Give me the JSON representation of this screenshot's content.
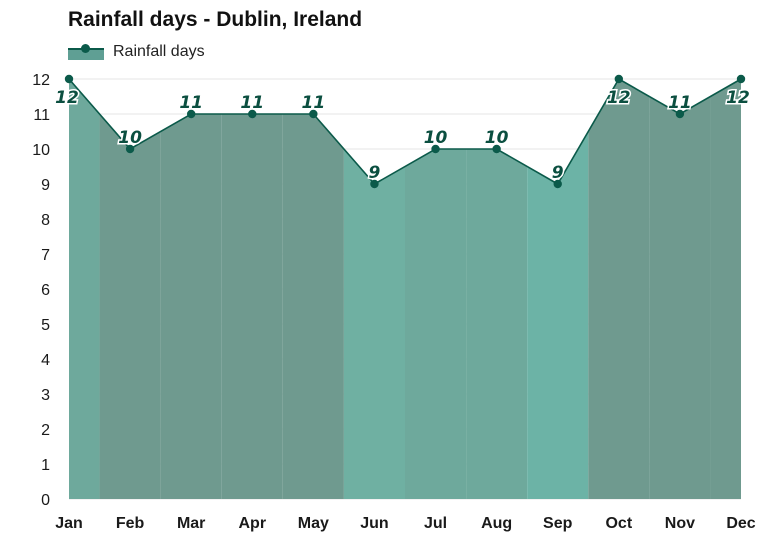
{
  "title": "Rainfall days - Dublin, Ireland",
  "legend": {
    "label": "Rainfall days"
  },
  "colors": {
    "line": "#0b5a4a",
    "marker": "#0b5a4a",
    "label": "#0b4f40",
    "grid": "#e6e6e6",
    "bands": [
      "#6ea99c",
      "#6f9a8f",
      "#6f9a8f",
      "#6f9a8f",
      "#6f9a8f",
      "#6fb0a2",
      "#6ea99c",
      "#6ea99c",
      "#6cb3a6",
      "#6f9a8f",
      "#6f9a8f",
      "#6f9a8f"
    ]
  },
  "chart_data": {
    "type": "area",
    "title": "Rainfall days - Dublin, Ireland",
    "categories": [
      "Jan",
      "Feb",
      "Mar",
      "Apr",
      "May",
      "Jun",
      "Jul",
      "Aug",
      "Sep",
      "Oct",
      "Nov",
      "Dec"
    ],
    "series": [
      {
        "name": "Rainfall days",
        "values": [
          12,
          10,
          11,
          11,
          11,
          9,
          10,
          10,
          9,
          12,
          11,
          12
        ]
      }
    ],
    "data_labels": [
      "12",
      "10",
      "11",
      "11",
      "11",
      "9",
      "10",
      "10",
      "9",
      "12",
      "11",
      "12"
    ],
    "yticks": [
      "0",
      "1",
      "2",
      "3",
      "4",
      "5",
      "6",
      "7",
      "8",
      "9",
      "10",
      "11",
      "12"
    ],
    "ylim": [
      0,
      12
    ],
    "grid": true,
    "legend_position": "top-left",
    "xlabel": "",
    "ylabel": ""
  }
}
